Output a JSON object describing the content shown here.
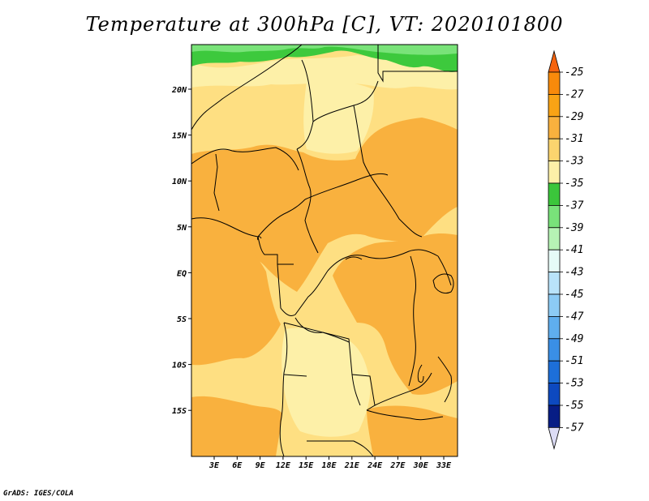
{
  "title": "Temperature at 300hPa [C], VT: 2020101800",
  "credit": "GrADS: IGES/COLA",
  "colors": {
    "ocean": "#fedf82",
    "frame": "#000000",
    "green_band": "#3dc93d",
    "light_green": "#79e379"
  },
  "map": {
    "lat_ticks": [
      "20N",
      "15N",
      "10N",
      "5N",
      "EQ",
      "5S",
      "10S",
      "15S"
    ],
    "lon_ticks": [
      "3E",
      "6E",
      "9E",
      "12E",
      "15E",
      "18E",
      "21E",
      "24E",
      "27E",
      "30E",
      "33E"
    ]
  },
  "legend": {
    "labels": [
      "-25",
      "-27",
      "-29",
      "-31",
      "-33",
      "-35",
      "-37",
      "-39",
      "-41",
      "-43",
      "-45",
      "-47",
      "-49",
      "-51",
      "-53",
      "-55",
      "-57"
    ],
    "colors": [
      "#f5640f",
      "#f88a0b",
      "#f9a315",
      "#f9b13e",
      "#fbd46e",
      "#fdf0a8",
      "#3bc63b",
      "#79e27a",
      "#b6f3b4",
      "#e6fbf7",
      "#b9e3fa",
      "#8ccbf5",
      "#5faeee",
      "#3a8fe6",
      "#1d6fd9",
      "#0d49bf",
      "#071d85",
      "#0a0a5c"
    ],
    "top_triangle_color": "#f5640f",
    "bottom_triangle_color": "#dcdcf5"
  }
}
